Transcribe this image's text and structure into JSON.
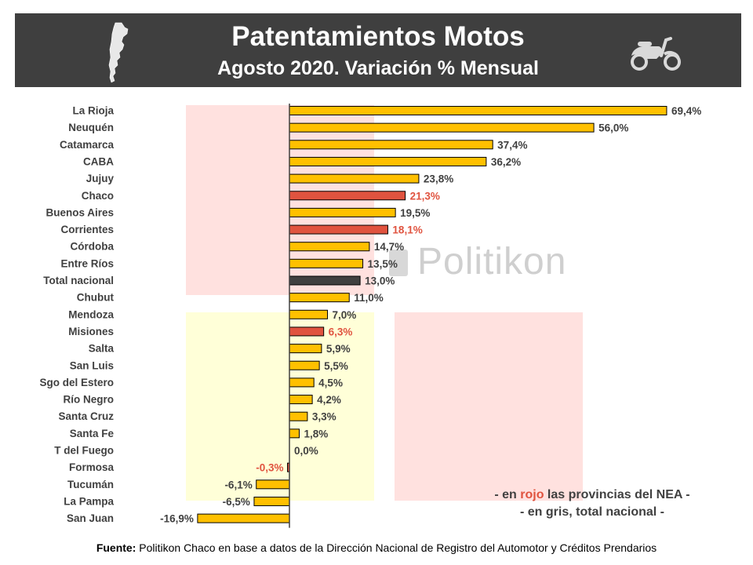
{
  "header": {
    "title": "Patentamientos Motos",
    "subtitle": "Agosto 2020.  Variación % Mensual"
  },
  "icons": {
    "map": "argentina-map-icon",
    "moto": "scooter-icon"
  },
  "watermark": "Politikon",
  "colors": {
    "default": "#ffc000",
    "nea": "#e0533f",
    "total": "#404040",
    "header_bg": "#3f3f3f"
  },
  "note": {
    "line1_prefix": "- en ",
    "line1_red": "rojo",
    "line1_suffix": " las provincias del NEA -",
    "line2": "- en gris, total nacional -"
  },
  "source": {
    "label": "Fuente:",
    "text": " Politikon Chaco en base a datos de la Dirección Nacional de Registro del Automotor y Créditos Prendarios"
  },
  "chart_data": {
    "type": "bar",
    "orientation": "horizontal",
    "title": "Patentamientos Motos",
    "subtitle": "Agosto 2020.  Variación % Mensual",
    "unit": "%",
    "categories": [
      "La Rioja",
      "Neuquén",
      "Catamarca",
      "CABA",
      "Jujuy",
      "Chaco",
      "Buenos Aires",
      "Corrientes",
      "Córdoba",
      "Entre Ríos",
      "Total nacional",
      "Chubut",
      "Mendoza",
      "Misiones",
      "Salta",
      "San Luis",
      "Sgo del Estero",
      "Río Negro",
      "Santa Cruz",
      "Santa Fe",
      "T del Fuego",
      "Formosa",
      "Tucumán",
      "La Pampa",
      "San Juan"
    ],
    "values": [
      69.4,
      56.0,
      37.4,
      36.2,
      23.8,
      21.3,
      19.5,
      18.1,
      14.7,
      13.5,
      13.0,
      11.0,
      7.0,
      6.3,
      5.9,
      5.5,
      4.5,
      4.2,
      3.3,
      1.8,
      0.0,
      -0.3,
      -6.1,
      -6.5,
      -16.9
    ],
    "labels": [
      "69,4%",
      "56,0%",
      "37,4%",
      "36,2%",
      "23,8%",
      "21,3%",
      "19,5%",
      "18,1%",
      "14,7%",
      "13,5%",
      "13,0%",
      "11,0%",
      "7,0%",
      "6,3%",
      "5,9%",
      "5,5%",
      "4,5%",
      "4,2%",
      "3,3%",
      "1,8%",
      "0,0%",
      "-0,3%",
      "-6,1%",
      "-6,5%",
      "-16,9%"
    ],
    "groups": [
      "default",
      "default",
      "default",
      "default",
      "default",
      "nea",
      "default",
      "nea",
      "default",
      "default",
      "total",
      "default",
      "default",
      "nea",
      "default",
      "default",
      "default",
      "default",
      "default",
      "default",
      "default",
      "nea",
      "default",
      "default",
      "default"
    ],
    "xlim": [
      -17,
      70
    ]
  }
}
